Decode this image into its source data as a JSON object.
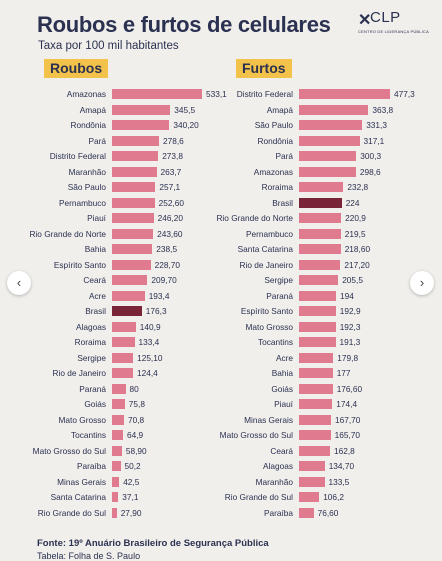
{
  "title": "Roubos e furtos de celulares",
  "subtitle": "Taxa por 100 mil habitantes",
  "logo": {
    "mark": "✕",
    "text": "CLP",
    "sub": "CENTRO DE LIDERANÇA PÚBLICA"
  },
  "source": "Fonte: 19º Anuário Brasileiro de Segurança Pública",
  "source_table": "Tabela: Folha de S. Paulo",
  "nav": {
    "prev": "‹",
    "next": "›"
  },
  "colors": {
    "bar": "#e07a8e",
    "highlight": "#7a2437",
    "header": "#f2c24a"
  },
  "chart_data": [
    {
      "type": "bar",
      "title": "Roubos",
      "highlight": "Brasil",
      "categories": [
        "Amazonas",
        "Amapá",
        "Rondônia",
        "Pará",
        "Distrito Federal",
        "Maranhão",
        "São Paulo",
        "Pernambuco",
        "Piauí",
        "Rio Grande do Norte",
        "Bahia",
        "Espírito Santo",
        "Ceará",
        "Acre",
        "Brasil",
        "Alagoas",
        "Roraima",
        "Sergipe",
        "Rio de Janeiro",
        "Paraná",
        "Goiás",
        "Mato Grosso",
        "Tocantins",
        "Mato Grosso do Sul",
        "Paraíba",
        "Minas Gerais",
        "Santa Catarina",
        "Rio Grande do Sul"
      ],
      "values": [
        533.1,
        345.5,
        340.2,
        278.6,
        273.8,
        263.7,
        257.1,
        252.6,
        246.2,
        243.6,
        238.5,
        228.7,
        209.7,
        193.4,
        176.3,
        140.9,
        133.4,
        125.1,
        124.4,
        80,
        75.8,
        70.8,
        64.9,
        58.9,
        50.2,
        42.5,
        37.1,
        27.9
      ],
      "labels": [
        "533,1",
        "345,5",
        "340,20",
        "278,6",
        "273,8",
        "263,7",
        "257,1",
        "252,60",
        "246,20",
        "243,60",
        "238,5",
        "228,70",
        "209,70",
        "193,4",
        "176,3",
        "140,9",
        "133,4",
        "125,10",
        "124,4",
        "80",
        "75,8",
        "70,8",
        "64,9",
        "58,90",
        "50,2",
        "42,5",
        "37,1",
        "27,90"
      ]
    },
    {
      "type": "bar",
      "title": "Furtos",
      "highlight": "Brasil",
      "categories": [
        "Distrito Federal",
        "Amapá",
        "São Paulo",
        "Rondônia",
        "Pará",
        "Amazonas",
        "Roraima",
        "Brasil",
        "Rio Grande do Norte",
        "Pernambuco",
        "Santa Catarina",
        "Rio de Janeiro",
        "Sergipe",
        "Paraná",
        "Espírito Santo",
        "Mato Grosso",
        "Tocantins",
        "Acre",
        "Bahia",
        "Goiás",
        "Piauí",
        "Minas Gerais",
        "Mato Grosso do Sul",
        "Ceará",
        "Alagoas",
        "Maranhão",
        "Rio Grande do Sul",
        "Paraíba"
      ],
      "values": [
        477.3,
        363.8,
        331.3,
        317.1,
        300.3,
        298.6,
        232.8,
        224,
        220.9,
        219.5,
        218.6,
        217.2,
        205.5,
        194,
        192.9,
        192.3,
        191.3,
        179.8,
        177,
        176.6,
        174.4,
        167.7,
        165.7,
        162.8,
        134.7,
        133.5,
        106.2,
        76.6
      ],
      "labels": [
        "477,3",
        "363,8",
        "331,3",
        "317,1",
        "300,3",
        "298,6",
        "232,8",
        "224",
        "220,9",
        "219,5",
        "218,60",
        "217,20",
        "205,5",
        "194",
        "192,9",
        "192,3",
        "191,3",
        "179,8",
        "177",
        "176,60",
        "174,4",
        "167,70",
        "165,70",
        "162,8",
        "134,70",
        "133,5",
        "106,2",
        "76,60"
      ]
    }
  ]
}
